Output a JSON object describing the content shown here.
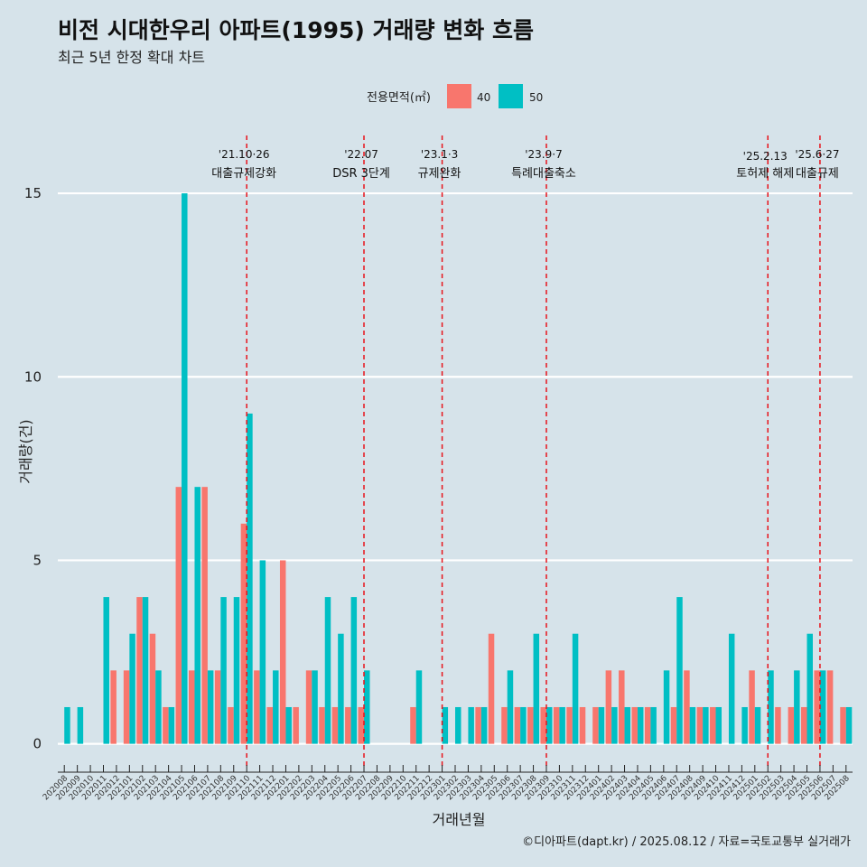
{
  "title": "비전 시대한우리 아파트(1995) 거래량 변화 흐름",
  "subtitle": "최근 5년 한정 확대 차트",
  "caption": "©디아파트(dapt.kr) / 2025.08.12 / 자료=국토교통부 실거래가",
  "legend": {
    "title": "전용면적(㎡)",
    "items": [
      {
        "label": "40",
        "color": "#f8766d"
      },
      {
        "label": "50",
        "color": "#00bfc4"
      }
    ]
  },
  "chart_data": {
    "type": "bar",
    "xlabel": "거래년월",
    "ylabel": "거래량(건)",
    "ylim": [
      -0.6,
      16.7
    ],
    "yticks": [
      0,
      5,
      10,
      15
    ],
    "grid": true,
    "legend_position": "top",
    "categories": [
      "202008",
      "202009",
      "202010",
      "202011",
      "202012",
      "202101",
      "202102",
      "202103",
      "202104",
      "202105",
      "202106",
      "202107",
      "202108",
      "202109",
      "202110",
      "202111",
      "202112",
      "202201",
      "202202",
      "202203",
      "202204",
      "202205",
      "202206",
      "202207",
      "202208",
      "202209",
      "202210",
      "202211",
      "202212",
      "202301",
      "202302",
      "202303",
      "202304",
      "202305",
      "202306",
      "202307",
      "202308",
      "202309",
      "202310",
      "202311",
      "202312",
      "202401",
      "202402",
      "202403",
      "202404",
      "202405",
      "202406",
      "202407",
      "202408",
      "202409",
      "202410",
      "202411",
      "202412",
      "202501",
      "202502",
      "202503",
      "202504",
      "202505",
      "202506",
      "202507",
      "202508"
    ],
    "series": [
      {
        "name": "40",
        "color": "#f8766d",
        "values": [
          0,
          0,
          0,
          0,
          2,
          2,
          4,
          3,
          1,
          7,
          2,
          7,
          2,
          1,
          6,
          2,
          1,
          5,
          1,
          2,
          1,
          1,
          1,
          1,
          0,
          0,
          0,
          1,
          0,
          0,
          0,
          0,
          1,
          3,
          1,
          1,
          1,
          1,
          1,
          1,
          1,
          1,
          2,
          2,
          1,
          1,
          0,
          1,
          2,
          1,
          1,
          0,
          0,
          2,
          0,
          1,
          1,
          1,
          2,
          2,
          1
        ]
      },
      {
        "name": "50",
        "color": "#00bfc4",
        "values": [
          1,
          1,
          0,
          4,
          0,
          3,
          4,
          2,
          1,
          15,
          7,
          2,
          4,
          4,
          9,
          5,
          2,
          1,
          0,
          2,
          4,
          3,
          4,
          2,
          0,
          0,
          0,
          2,
          0,
          1,
          1,
          1,
          1,
          0,
          2,
          1,
          3,
          1,
          1,
          3,
          0,
          1,
          1,
          1,
          1,
          1,
          2,
          4,
          1,
          1,
          1,
          3,
          1,
          1,
          2,
          0,
          2,
          3,
          2,
          0,
          1
        ]
      }
    ],
    "events": [
      {
        "date": "'21.10·26",
        "label": "대출규제강화",
        "at": "202110"
      },
      {
        "date": "'22.07",
        "label": "DSR 3단계",
        "at": "202207"
      },
      {
        "date": "'23.1·3",
        "label": "규제완화",
        "at": "202301"
      },
      {
        "date": "'23.9·7",
        "label": "특례대출축소",
        "at": "202309"
      },
      {
        "date": "'25.2.13",
        "label": "토허제 해제",
        "at": "202502"
      },
      {
        "date": "'25.6·27",
        "label": "대출규제",
        "at": "202506"
      }
    ]
  }
}
